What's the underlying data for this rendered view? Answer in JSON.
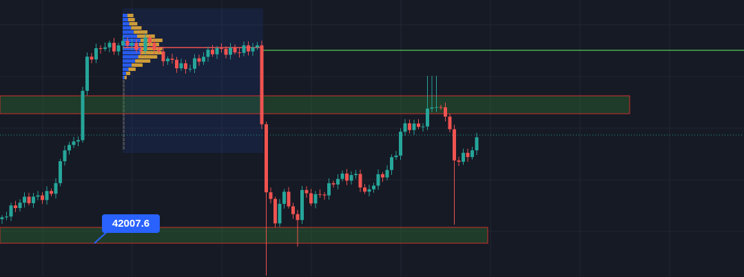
{
  "price_label": {
    "text": "42007.6"
  }
}
